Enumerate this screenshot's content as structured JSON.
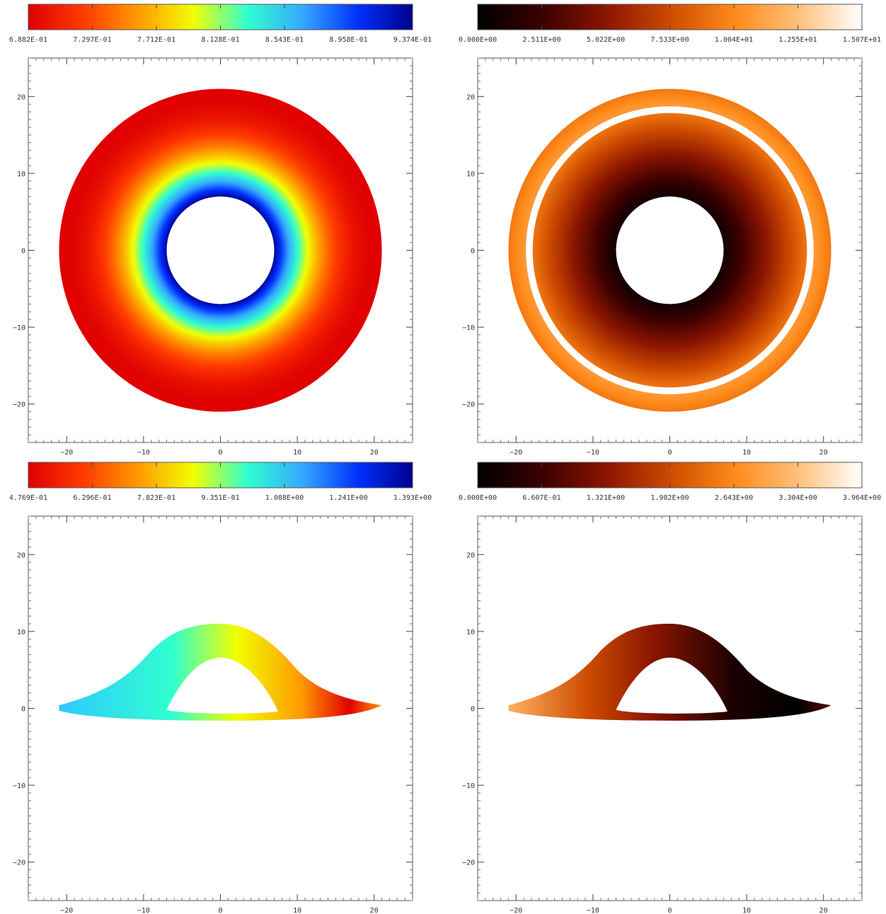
{
  "chart_data": [
    {
      "type": "heatmap",
      "title": "",
      "xlabel": "",
      "ylabel": "",
      "xlim": [
        -25,
        25
      ],
      "ylim": [
        -25,
        25
      ],
      "xticks": [
        -20,
        -10,
        0,
        10,
        20
      ],
      "yticks": [
        -20,
        -10,
        0,
        10,
        20
      ],
      "grid": false,
      "shape": "face-on disk",
      "outer_radius": 21,
      "inner_radius": 7,
      "colormap": "jet-reversed",
      "colors": [
        "#e00000",
        "#ff3a00",
        "#ff9a00",
        "#f2ff00",
        "#30ffd0",
        "#35a8ff",
        "#0030ff",
        "#00008e"
      ],
      "colorbar": {
        "range": [
          0.6882,
          0.9374
        ],
        "tick_labels": [
          "6.882E-01",
          "7.297E-01",
          "7.712E-01",
          "8.128E-01",
          "8.543E-01",
          "8.958E-01",
          "9.374E-01"
        ]
      }
    },
    {
      "type": "heatmap",
      "title": "",
      "xlabel": "",
      "ylabel": "",
      "xlim": [
        -25,
        25
      ],
      "ylim": [
        -25,
        25
      ],
      "xticks": [
        -20,
        -10,
        0,
        10,
        20
      ],
      "yticks": [
        -20,
        -10,
        0,
        10,
        20
      ],
      "grid": false,
      "shape": "face-on disk",
      "outer_radius": 21,
      "inner_radius": 7,
      "colormap": "hot",
      "colors": [
        "#000000",
        "#3a0000",
        "#8a1500",
        "#cc4a00",
        "#ff8a1a",
        "#ffc07a",
        "#ffffff"
      ],
      "colorbar": {
        "range": [
          0.0,
          15.07
        ],
        "tick_labels": [
          "0.000E+00",
          "2.511E+00",
          "5.022E+00",
          "7.533E+00",
          "1.004E+01",
          "1.255E+01",
          "1.507E+01"
        ]
      }
    },
    {
      "type": "heatmap",
      "title": "",
      "xlabel": "",
      "ylabel": "",
      "xlim": [
        -25,
        25
      ],
      "ylim": [
        -25,
        25
      ],
      "xticks": [
        -20,
        -10,
        0,
        10,
        20
      ],
      "yticks": [
        -20,
        -10,
        0,
        10,
        20
      ],
      "grid": false,
      "shape": "edge-on lensed disk",
      "extent_x": [
        -21,
        21
      ],
      "arch_top": 11,
      "colormap": "jet-reversed",
      "colors": [
        "#e00000",
        "#ff3a00",
        "#ff9a00",
        "#f2ff00",
        "#30ffd0",
        "#35a8ff",
        "#0030ff",
        "#00008e"
      ],
      "colorbar": {
        "range": [
          0.4769,
          1.393
        ],
        "tick_labels": [
          "4.769E-01",
          "6.296E-01",
          "7.823E-01",
          "9.351E-01",
          "1.088E+00",
          "1.241E+00",
          "1.393E+00"
        ]
      }
    },
    {
      "type": "heatmap",
      "title": "",
      "xlabel": "",
      "ylabel": "",
      "xlim": [
        -25,
        25
      ],
      "ylim": [
        -25,
        25
      ],
      "xticks": [
        -20,
        -10,
        0,
        10,
        20
      ],
      "yticks": [
        -20,
        -10,
        0,
        10,
        20
      ],
      "grid": false,
      "shape": "edge-on lensed disk",
      "extent_x": [
        -21,
        21
      ],
      "arch_top": 11,
      "colormap": "hot",
      "colors": [
        "#000000",
        "#3a0000",
        "#8a1500",
        "#cc4a00",
        "#ff8a1a",
        "#ffc07a",
        "#ffffff"
      ],
      "colorbar": {
        "range": [
          0.0,
          3.964
        ],
        "tick_labels": [
          "0.000E+00",
          "6.607E-01",
          "1.321E+00",
          "1.982E+00",
          "2.643E+00",
          "3.304E+00",
          "3.964E+00"
        ]
      }
    }
  ]
}
